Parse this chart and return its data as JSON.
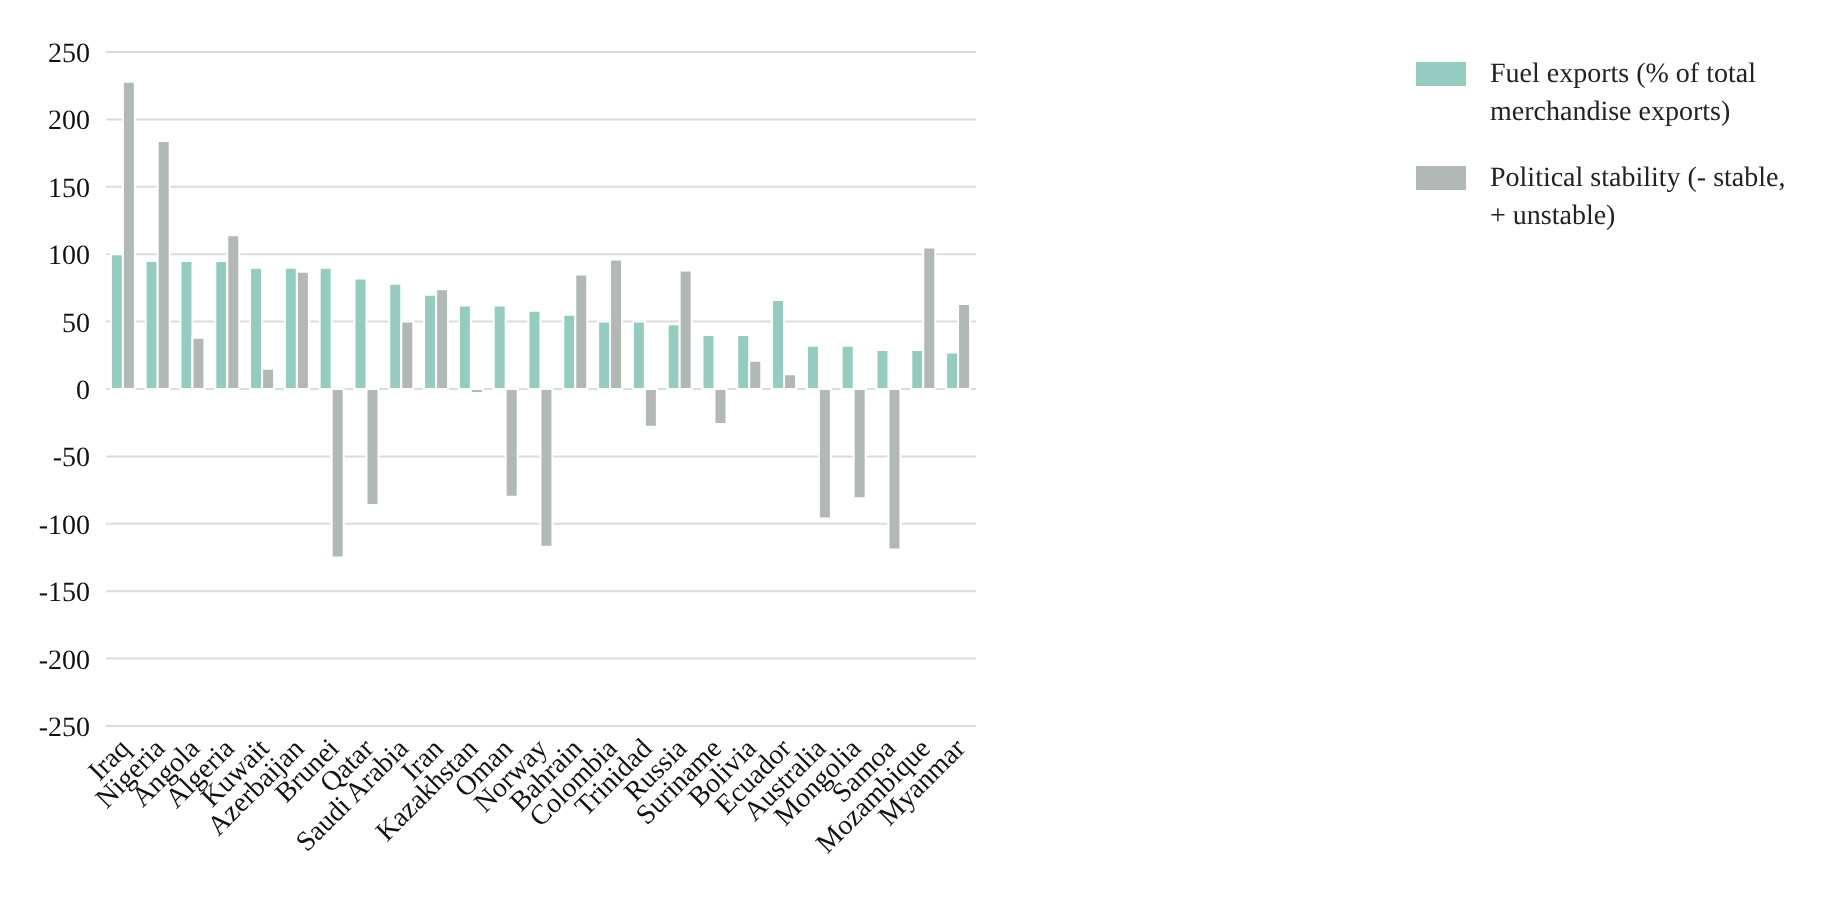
{
  "chart_data": {
    "type": "bar",
    "categories": [
      "Iraq",
      "Nigeria",
      "Angola",
      "Algeria",
      "Kuwait",
      "Azerbaijan",
      "Brunei",
      "Qatar",
      "Saudi Arabia",
      "Iran",
      "Kazakhstan",
      "Oman",
      "Norway",
      "Bahrain",
      "Colombia",
      "Trinidad",
      "Russia",
      "Suriname",
      "Bolivia",
      "Ecuador",
      "Australia",
      "Mongolia",
      "Samoa",
      "Mozambique",
      "Myanmar"
    ],
    "series": [
      {
        "name": "Fuel exports (% of total merchandise exports)",
        "color": "#94cdbf",
        "values": [
          100,
          95,
          95,
          95,
          90,
          90,
          90,
          82,
          78,
          70,
          62,
          62,
          58,
          55,
          50,
          50,
          48,
          40,
          40,
          66,
          32,
          32,
          29,
          29,
          27
        ]
      },
      {
        "name": "Political stability (- stable, + unstable)",
        "color": "#b1b8b6",
        "values": [
          228,
          184,
          38,
          114,
          15,
          87,
          -125,
          -86,
          50,
          74,
          -3,
          -80,
          -117,
          85,
          96,
          -28,
          88,
          -26,
          21,
          11,
          -96,
          -81,
          -119,
          105,
          63
        ]
      }
    ],
    "ylim": [
      -250,
      250
    ],
    "yticks": [
      -250,
      -200,
      -150,
      -100,
      -50,
      0,
      50,
      100,
      150,
      200,
      250
    ],
    "grid": "y",
    "legend": "top right"
  }
}
